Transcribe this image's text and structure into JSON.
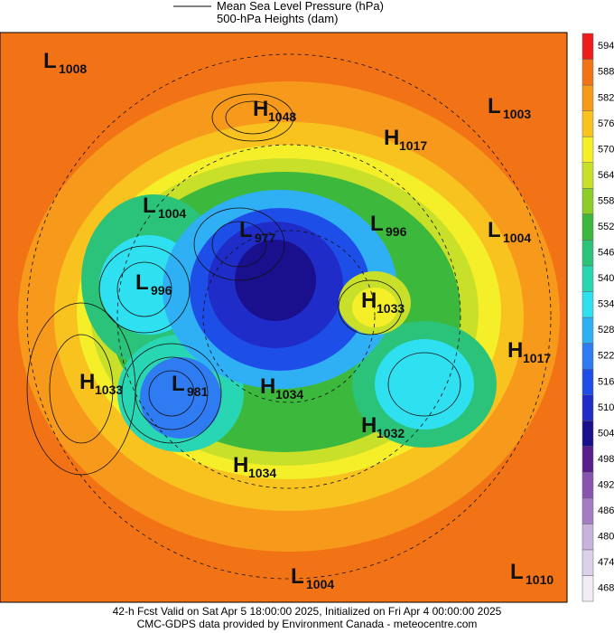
{
  "header": {
    "legend": [
      "Mean Sea Level Pressure (hPa)",
      "500-hPa Heights (dam)"
    ]
  },
  "colorbar": [
    {
      "value": 468,
      "color": "#f2ecf7"
    },
    {
      "value": 474,
      "color": "#ddd0ea"
    },
    {
      "value": 480,
      "color": "#c9b2dc"
    },
    {
      "value": 486,
      "color": "#a47cc4"
    },
    {
      "value": 492,
      "color": "#8755b0"
    },
    {
      "value": 498,
      "color": "#5a1e8c"
    },
    {
      "value": 504,
      "color": "#1a0f8c"
    },
    {
      "value": 510,
      "color": "#1f2cc8"
    },
    {
      "value": 516,
      "color": "#1e4ee8"
    },
    {
      "value": 522,
      "color": "#2f7cf2"
    },
    {
      "value": 528,
      "color": "#2fb0f5"
    },
    {
      "value": 534,
      "color": "#2fe0f0"
    },
    {
      "value": 540,
      "color": "#29d6b4"
    },
    {
      "value": 546,
      "color": "#2bc27a"
    },
    {
      "value": 552,
      "color": "#3cb83c"
    },
    {
      "value": 558,
      "color": "#8ccd2a"
    },
    {
      "value": 564,
      "color": "#c8e02a"
    },
    {
      "value": 570,
      "color": "#f5ef2a"
    },
    {
      "value": 576,
      "color": "#f8c21f"
    },
    {
      "value": 582,
      "color": "#f79a1c"
    },
    {
      "value": 588,
      "color": "#f27315"
    },
    {
      "value": 594,
      "color": "#ee1c1c"
    }
  ],
  "systems": [
    {
      "type": "L",
      "value": 1008
    },
    {
      "type": "H",
      "value": 1048
    },
    {
      "type": "L",
      "value": 1003
    },
    {
      "type": "H",
      "value": 1017
    },
    {
      "type": "L",
      "value": 1004
    },
    {
      "type": "L",
      "value": 977
    },
    {
      "type": "L",
      "value": 996
    },
    {
      "type": "L",
      "value": 1004
    },
    {
      "type": "L",
      "value": 996
    },
    {
      "type": "H",
      "value": 1033
    },
    {
      "type": "H",
      "value": 1017
    },
    {
      "type": "H",
      "value": 1033
    },
    {
      "type": "L",
      "value": 981
    },
    {
      "type": "H",
      "value": 1034
    },
    {
      "type": "H",
      "value": 1032
    },
    {
      "type": "H",
      "value": 1034
    },
    {
      "type": "L",
      "value": 1004
    },
    {
      "type": "L",
      "value": 1010
    }
  ],
  "footer": [
    "42-h Fcst Valid on Sat Apr  5 18:00:00 2025, Initialized on Fri Apr  4 00:00:00 2025",
    "CMC-GDPS data provided by Environment Canada - meteocentre.com"
  ]
}
